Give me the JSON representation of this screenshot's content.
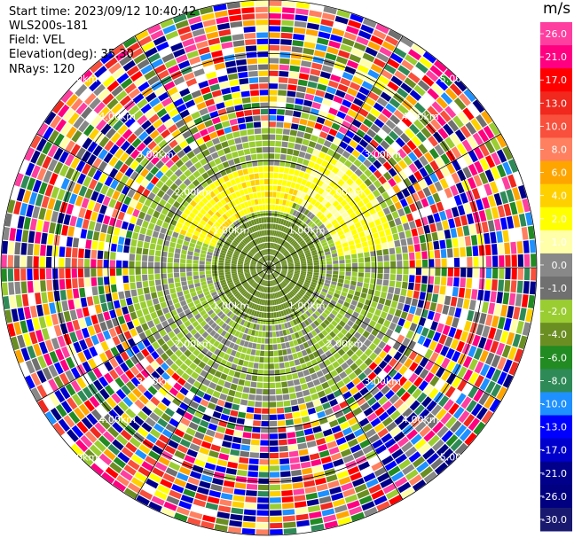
{
  "header": {
    "start_time": "Start time: 2023/09/12 10:40:42",
    "instrument": "WLS200s-181",
    "field": "Field: VEL",
    "elevation": "Elevation(deg): 35.30",
    "nrays": "NRays: 120"
  },
  "colorbar": {
    "units": "m/s",
    "ticks": [
      "26.0",
      "21.0",
      "17.0",
      "13.0",
      "10.0",
      "8.0",
      "6.0",
      "4.0",
      "2.0",
      "1.0",
      "0.0",
      "-1.0",
      "-2.0",
      "-4.0",
      "-6.0",
      "-8.0",
      "-10.0",
      "-13.0",
      "-17.0",
      "-21.0",
      "-26.0",
      "-30.0"
    ],
    "colors": [
      "#ff3fa0",
      "#ff0080",
      "#ff0000",
      "#f0281e",
      "#f8503c",
      "#ff8060",
      "#ffa500",
      "#ffd000",
      "#ffff00",
      "#ffffaa",
      "#888888",
      "#707070",
      "#9acd32",
      "#6b8e23",
      "#228b22",
      "#2e8b57",
      "#1e90ff",
      "#0000ff",
      "#0000cd",
      "#00008b",
      "#000080",
      "#191970"
    ]
  },
  "chart_data": {
    "type": "ppi",
    "field": "VEL",
    "units": "m/s",
    "elevation_deg": 35.3,
    "n_rays": 120,
    "ring_labels": [
      "1.00km",
      "2.00km",
      "3.00km",
      "4.00km",
      "5.00km"
    ],
    "ring_ranges_km": [
      1,
      2,
      3,
      4,
      5
    ],
    "max_range_km": 5.0,
    "near_field": {
      "inner_ring_km_max": 0.9,
      "description_values": {
        "north_west_east_core": 1.5,
        "south_west_core": -2.0,
        "center": 0.0
      }
    }
  }
}
